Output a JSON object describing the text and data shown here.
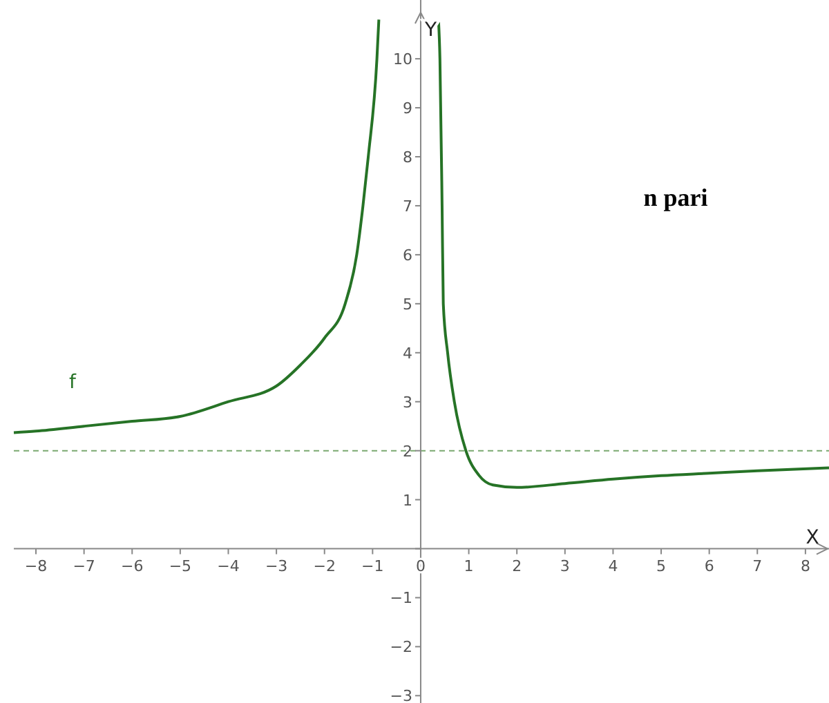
{
  "chart_data": {
    "type": "line",
    "xlabel": "X",
    "ylabel": "Y",
    "xlim": [
      -8.46,
      8.49
    ],
    "ylim": [
      -3.15,
      11.2
    ],
    "xticks": [
      -8,
      -7,
      -6,
      -5,
      -4,
      -3,
      -2,
      -1,
      0,
      1,
      2,
      3,
      4,
      5,
      6,
      7,
      8
    ],
    "yticks": [
      -3,
      -2,
      -1,
      {
        "value": 0,
        "label": null
      },
      1,
      2,
      3,
      4,
      5,
      6,
      7,
      8,
      9,
      10
    ],
    "grid": false,
    "series": [
      {
        "name": "f",
        "color": "#267326",
        "x": [
          -8.46,
          -8,
          -7,
          -6,
          -5,
          -4,
          -3,
          -2.5,
          -2,
          -1.57,
          -1.33,
          -1.2,
          -1.09,
          -0.91,
          -0.87,
          0,
          0.37,
          0.4,
          0.445,
          0.47,
          0.56,
          0.7,
          0.94,
          1.21,
          1.5,
          2,
          3,
          4,
          5,
          6,
          7,
          8.49
        ],
        "values": [
          2.37,
          2.4,
          2.5,
          2.6,
          2.7,
          3.0,
          3.32,
          3.75,
          4.3,
          5,
          6,
          7,
          8,
          10,
          10.8,
          null,
          10.8,
          10,
          7,
          5,
          4,
          3,
          2,
          1.5,
          1.3,
          1.25,
          1.33,
          1.42,
          1.49,
          1.54,
          1.59,
          1.65
        ]
      }
    ],
    "ref_lines": [
      {
        "axis": "y",
        "value": 2,
        "color": "#7aa86f",
        "line_style": "dashed"
      }
    ],
    "annotations": [
      "n pari"
    ]
  }
}
